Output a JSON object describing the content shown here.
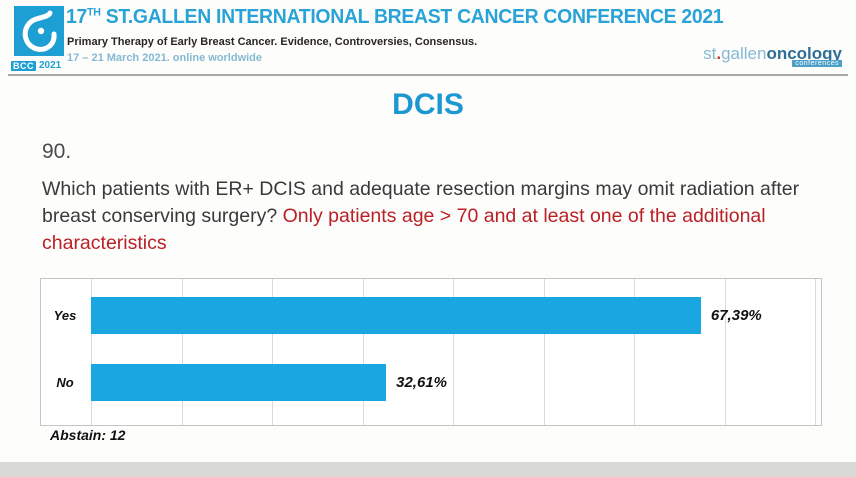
{
  "header": {
    "title_num": "17",
    "title_sup": "TH",
    "title_rest": " ST.GALLEN INTERNATIONAL BREAST CANCER CONFERENCE 2021",
    "subtitle": "Primary Therapy of Early Breast Cancer. Evidence, Controversies, Consensus.",
    "dates": "17 – 21 March 2021. online worldwide",
    "badge_bcc": "BCC",
    "badge_year": "2021",
    "brand": {
      "st": "st",
      "dot": ".",
      "gallen": "gallen",
      "oncology": "oncology",
      "tag": "conferences"
    }
  },
  "slide": {
    "title": "DCIS",
    "question_number": "90.",
    "question_black": "Which patients with ER+ DCIS and adequate resection margins may omit radiation after breast conserving surgery? ",
    "question_red": "Only patients age > 70 and at least one of the additional characteristics"
  },
  "chart_data": {
    "type": "bar",
    "orientation": "horizontal",
    "title": "",
    "categories": [
      "Yes",
      "No"
    ],
    "values": [
      67.39,
      32.61
    ],
    "value_labels": [
      "67,39%",
      "32,61%"
    ],
    "abstain_note": "Abstain: 12",
    "xlim": [
      0,
      80
    ],
    "gridline_interval": 10,
    "grid": true,
    "legend": false,
    "tick_labels_shown": false
  },
  "colors": {
    "conference_blue": "#29a3d7",
    "logo_blue": "#1d9fd4",
    "slide_title_blue": "#1b98d2",
    "question_red": "#bb2026",
    "bar_fill": "#1aa7e1",
    "brand_light_blue": "#86b9d3",
    "brand_dark_blue": "#2e6f96"
  }
}
